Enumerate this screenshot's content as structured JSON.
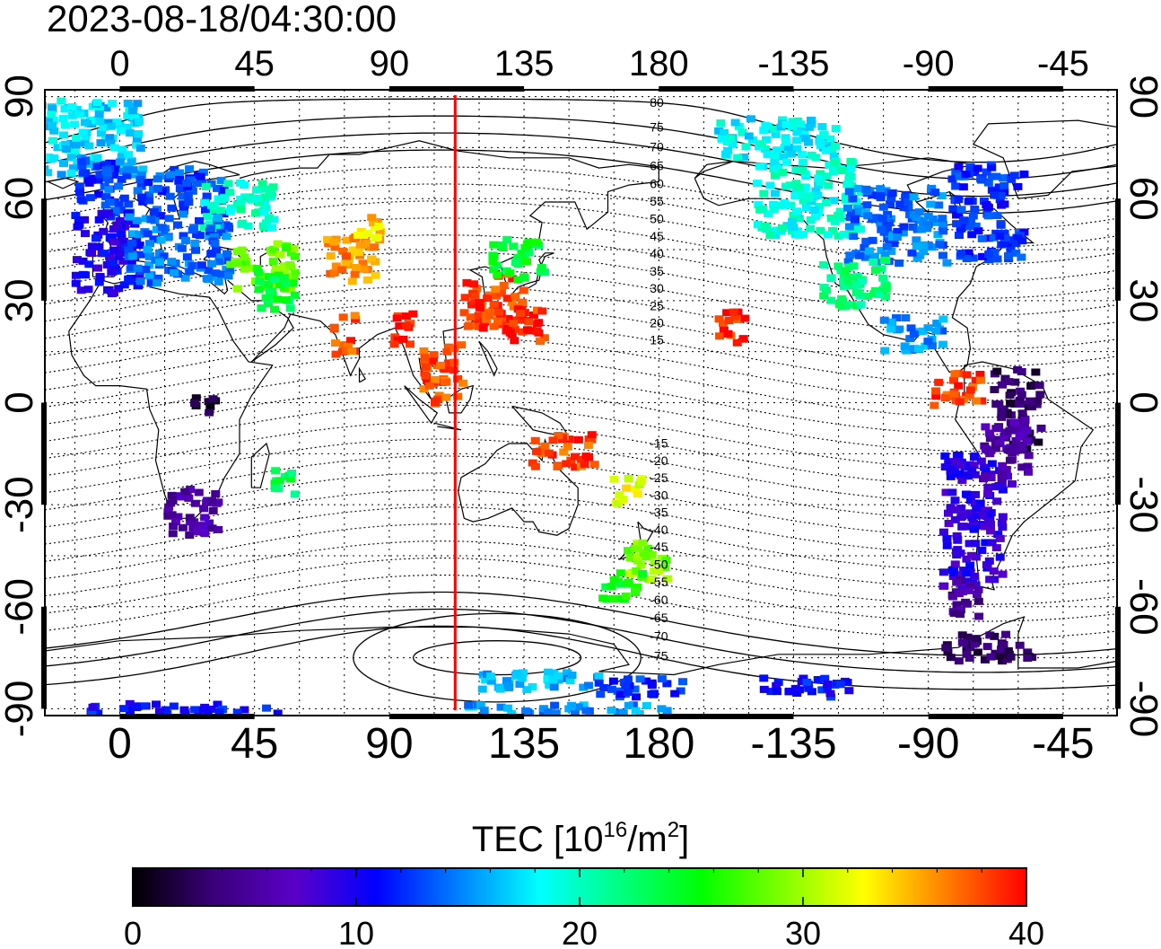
{
  "timestamp": "2023-08-18/04:30:00",
  "map": {
    "top_lon_ticks": [
      "0",
      "45",
      "90",
      "135",
      "180",
      "-135",
      "-90",
      "-45"
    ],
    "bottom_lon_ticks": [
      "0",
      "45",
      "90",
      "135",
      "180",
      "-135",
      "-90",
      "-45"
    ],
    "left_lat_ticks": [
      "90",
      "60",
      "30",
      "0",
      "-30",
      "-60",
      "-90"
    ],
    "right_lat_ticks": [
      "90",
      "60",
      "30",
      "0",
      "-30",
      "-60",
      "-90"
    ],
    "lon_range": [
      -25,
      333
    ],
    "lat_range": [
      -92,
      92
    ],
    "terminator_lon": 112,
    "terminator_color": "#ff0000",
    "contour_labels": [
      "80",
      "75",
      "70",
      "65",
      "60",
      "55",
      "50",
      "45",
      "40",
      "35",
      "30",
      "25",
      "20",
      "15",
      "-15",
      "-20",
      "-25",
      "-30",
      "-35",
      "-40",
      "-45",
      "-50",
      "-55",
      "-60",
      "-65",
      "-70",
      "-75"
    ]
  },
  "colorbar": {
    "title_main": "TEC  [10",
    "title_sup": "16",
    "title_mid": "/m",
    "title_sup2": "2",
    "title_end": "]",
    "ticks": [
      "0",
      "10",
      "20",
      "30",
      "40"
    ],
    "range": [
      0,
      40
    ],
    "colors": [
      "#000000",
      "#3a007a",
      "#5a00c8",
      "#0000ff",
      "#0080ff",
      "#00ffff",
      "#00ff80",
      "#00ff00",
      "#80ff00",
      "#ffff00",
      "#ff8000",
      "#ff0000"
    ]
  },
  "tec_patches": [
    {
      "lon": -12,
      "lat": 78,
      "w": 40,
      "h": 22,
      "v": 17
    },
    {
      "lon": -8,
      "lat": 66,
      "w": 14,
      "h": 14,
      "v": 12
    },
    {
      "lon": 15,
      "lat": 62,
      "w": 40,
      "h": 14,
      "v": 13
    },
    {
      "lon": 40,
      "lat": 58,
      "w": 24,
      "h": 14,
      "v": 20
    },
    {
      "lon": -4,
      "lat": 44,
      "w": 22,
      "h": 24,
      "v": 10
    },
    {
      "lon": 20,
      "lat": 45,
      "w": 34,
      "h": 20,
      "v": 14
    },
    {
      "lon": 48,
      "lat": 40,
      "w": 22,
      "h": 14,
      "v": 28
    },
    {
      "lon": 52,
      "lat": 33,
      "w": 14,
      "h": 12,
      "v": 24
    },
    {
      "lon": 78,
      "lat": 42,
      "w": 18,
      "h": 14,
      "v": 36
    },
    {
      "lon": 83,
      "lat": 52,
      "w": 10,
      "h": 8,
      "v": 34
    },
    {
      "lon": 75,
      "lat": 20,
      "w": 8,
      "h": 12,
      "v": 38
    },
    {
      "lon": 95,
      "lat": 22,
      "w": 8,
      "h": 10,
      "v": 39
    },
    {
      "lon": 125,
      "lat": 30,
      "w": 20,
      "h": 16,
      "v": 38
    },
    {
      "lon": 133,
      "lat": 42,
      "w": 18,
      "h": 12,
      "v": 24
    },
    {
      "lon": 130,
      "lat": 23,
      "w": 24,
      "h": 10,
      "v": 39
    },
    {
      "lon": 108,
      "lat": 8,
      "w": 14,
      "h": 18,
      "v": 38
    },
    {
      "lon": 148,
      "lat": -14,
      "w": 22,
      "h": 10,
      "v": 38
    },
    {
      "lon": 170,
      "lat": -26,
      "w": 10,
      "h": 8,
      "v": 32
    },
    {
      "lon": 176,
      "lat": -46,
      "w": 14,
      "h": 12,
      "v": 29
    },
    {
      "lon": 168,
      "lat": -54,
      "w": 14,
      "h": 8,
      "v": 25
    },
    {
      "lon": 205,
      "lat": 22,
      "w": 10,
      "h": 10,
      "v": 39
    },
    {
      "lon": 220,
      "lat": 78,
      "w": 40,
      "h": 12,
      "v": 18
    },
    {
      "lon": 230,
      "lat": 60,
      "w": 36,
      "h": 22,
      "v": 19
    },
    {
      "lon": 260,
      "lat": 52,
      "w": 34,
      "h": 22,
      "v": 14
    },
    {
      "lon": 290,
      "lat": 56,
      "w": 24,
      "h": 28,
      "v": 12
    },
    {
      "lon": 245,
      "lat": 35,
      "w": 22,
      "h": 14,
      "v": 22
    },
    {
      "lon": 265,
      "lat": 20,
      "w": 20,
      "h": 10,
      "v": 15
    },
    {
      "lon": 280,
      "lat": 4,
      "w": 16,
      "h": 10,
      "v": 38
    },
    {
      "lon": 300,
      "lat": -2,
      "w": 16,
      "h": 24,
      "v": 3
    },
    {
      "lon": 285,
      "lat": -35,
      "w": 20,
      "h": 40,
      "v": 9
    },
    {
      "lon": 296,
      "lat": -15,
      "w": 16,
      "h": 20,
      "v": 6
    },
    {
      "lon": 282,
      "lat": -58,
      "w": 10,
      "h": 12,
      "v": 5
    },
    {
      "lon": 290,
      "lat": -72,
      "w": 30,
      "h": 8,
      "v": 3
    },
    {
      "lon": 25,
      "lat": -32,
      "w": 18,
      "h": 14,
      "v": 6
    },
    {
      "lon": 28,
      "lat": 0,
      "w": 8,
      "h": 6,
      "v": 2
    },
    {
      "lon": 55,
      "lat": -24,
      "w": 8,
      "h": 8,
      "v": 23
    },
    {
      "lon": 140,
      "lat": -82,
      "w": 40,
      "h": 6,
      "v": 16
    },
    {
      "lon": 175,
      "lat": -84,
      "w": 30,
      "h": 6,
      "v": 12
    },
    {
      "lon": 230,
      "lat": -84,
      "w": 30,
      "h": 6,
      "v": 11
    },
    {
      "lon": 20,
      "lat": -90,
      "w": 70,
      "h": 3,
      "v": 11
    },
    {
      "lon": 150,
      "lat": -90,
      "w": 70,
      "h": 3,
      "v": 15
    }
  ]
}
